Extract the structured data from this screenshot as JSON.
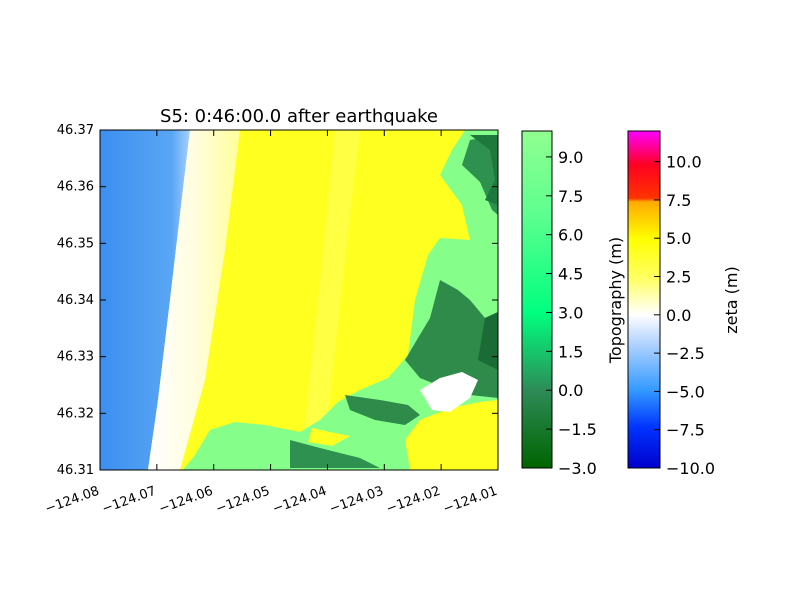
{
  "chart_data": {
    "type": "heatmap",
    "title": "S5: 0:46:00.0 after earthquake",
    "xlim": [
      -124.08,
      -124.01
    ],
    "ylim": [
      46.31,
      46.37
    ],
    "x_ticks": [
      -124.08,
      -124.07,
      -124.06,
      -124.05,
      -124.04,
      -124.03,
      -124.02,
      -124.01
    ],
    "x_tick_labels": [
      "−124.08",
      "−124.07",
      "−124.06",
      "−124.05",
      "−124.04",
      "−124.03",
      "−124.02",
      "−124.01"
    ],
    "y_ticks": [
      46.31,
      46.32,
      46.33,
      46.34,
      46.35,
      46.36,
      46.37
    ],
    "y_tick_labels": [
      "46.31",
      "46.32",
      "46.33",
      "46.34",
      "46.35",
      "46.36",
      "46.37"
    ],
    "xlabel": "",
    "ylabel": "",
    "grid": false,
    "fields": [
      {
        "name": "Topography",
        "colorbar_label": "Topography (m)",
        "range": [
          -3.0,
          10.0
        ],
        "ticks": [
          -3.0,
          -1.5,
          0.0,
          1.5,
          3.0,
          4.5,
          6.0,
          7.5,
          9.0
        ],
        "tick_labels": [
          "−3.0",
          "−1.5",
          "0.0",
          "1.5",
          "3.0",
          "4.5",
          "6.0",
          "7.5",
          "9.0"
        ],
        "colors": [
          "#006400",
          "#2e8b57",
          "#00ff7f",
          "#7fff7f",
          "#90ff90"
        ]
      },
      {
        "name": "zeta",
        "colorbar_label": "zeta (m)",
        "range": [
          -10.0,
          12.0
        ],
        "ticks": [
          -10.0,
          -7.5,
          -5.0,
          -2.5,
          0.0,
          2.5,
          5.0,
          7.5,
          10.0
        ],
        "tick_labels": [
          "−10.0",
          "−7.5",
          "−5.0",
          "−2.5",
          "0.0",
          "2.5",
          "5.0",
          "7.5",
          "10.0"
        ],
        "colors": [
          "#0000cc",
          "#0033ff",
          "#3399ff",
          "#ffffff",
          "#ffff00",
          "#ff9900",
          "#ff0000",
          "#ff00ff"
        ]
      }
    ]
  }
}
